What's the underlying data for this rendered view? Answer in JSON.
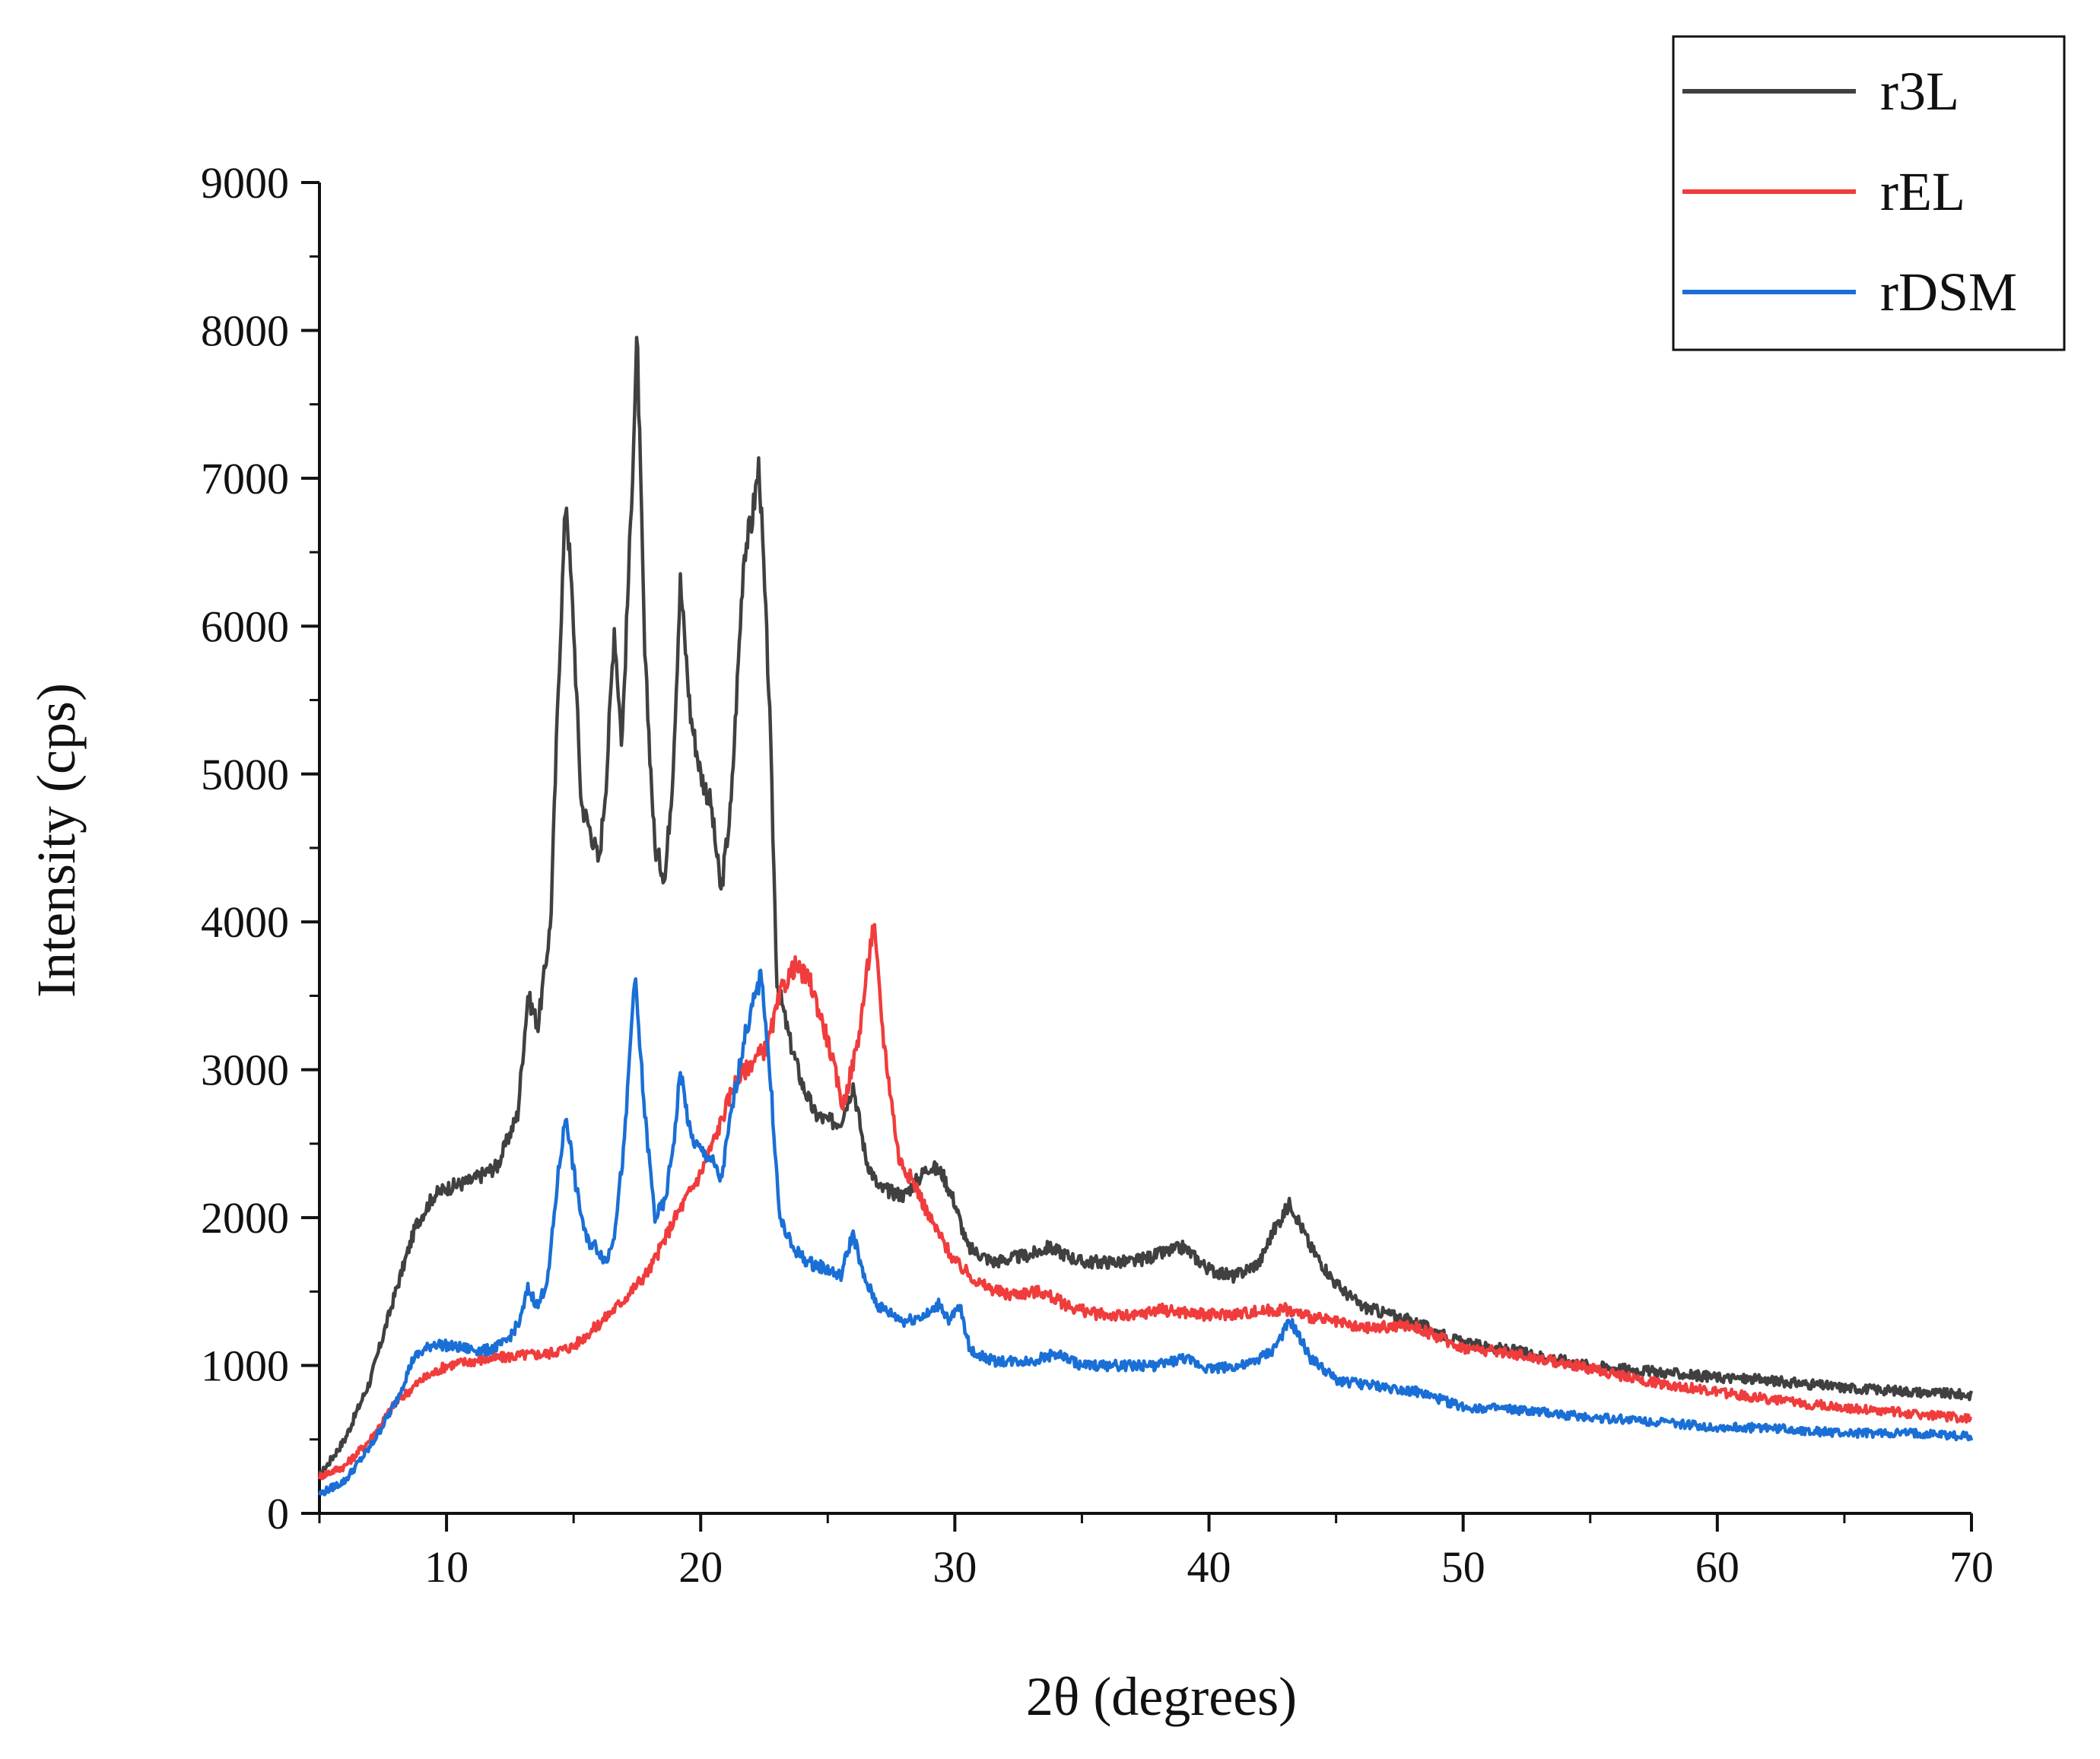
{
  "chart_data": {
    "type": "line",
    "title": "",
    "xlabel": "2θ (degrees)",
    "ylabel": "Intensity (cps)",
    "xlim": [
      5,
      70
    ],
    "ylim": [
      0,
      9000
    ],
    "x_ticks": [
      10,
      20,
      30,
      40,
      50,
      60,
      70
    ],
    "x_tick_labels": [
      "10",
      "20",
      "30",
      "40",
      "50",
      "60",
      "70"
    ],
    "y_ticks": [
      0,
      1000,
      2000,
      3000,
      4000,
      5000,
      6000,
      7000,
      8000,
      9000
    ],
    "y_tick_labels": [
      "0",
      "1000",
      "2000",
      "3000",
      "4000",
      "5000",
      "6000",
      "7000",
      "8000",
      "9000"
    ],
    "grid": false,
    "legend_position": "top-right",
    "series": [
      {
        "name": "r3L",
        "color": "#404040",
        "points": [
          [
            5,
            250
          ],
          [
            6,
            500
          ],
          [
            7,
            900
          ],
          [
            8,
            1500
          ],
          [
            8.8,
            1950
          ],
          [
            9.5,
            2150
          ],
          [
            10,
            2200
          ],
          [
            11,
            2250
          ],
          [
            12,
            2350
          ],
          [
            12.8,
            2700
          ],
          [
            13.2,
            3500
          ],
          [
            13.6,
            3300
          ],
          [
            14.1,
            4000
          ],
          [
            14.4,
            5600
          ],
          [
            14.7,
            6900
          ],
          [
            15.0,
            6000
          ],
          [
            15.3,
            4800
          ],
          [
            15.7,
            4600
          ],
          [
            16.0,
            4400
          ],
          [
            16.3,
            5000
          ],
          [
            16.6,
            6000
          ],
          [
            16.9,
            5200
          ],
          [
            17.2,
            6500
          ],
          [
            17.5,
            7950
          ],
          [
            17.8,
            5800
          ],
          [
            18.2,
            4500
          ],
          [
            18.6,
            4300
          ],
          [
            18.9,
            5000
          ],
          [
            19.2,
            6300
          ],
          [
            19.6,
            5400
          ],
          [
            20.0,
            5000
          ],
          [
            20.4,
            4800
          ],
          [
            20.8,
            4200
          ],
          [
            21.2,
            4800
          ],
          [
            21.7,
            6500
          ],
          [
            22.0,
            6700
          ],
          [
            22.3,
            7100
          ],
          [
            22.7,
            5500
          ],
          [
            23.0,
            3600
          ],
          [
            23.5,
            3200
          ],
          [
            24.0,
            2900
          ],
          [
            24.5,
            2700
          ],
          [
            25.0,
            2650
          ],
          [
            25.5,
            2650
          ],
          [
            26.0,
            2900
          ],
          [
            26.5,
            2400
          ],
          [
            27.0,
            2200
          ],
          [
            28.0,
            2150
          ],
          [
            29.0,
            2350
          ],
          [
            29.5,
            2300
          ],
          [
            30.0,
            2100
          ],
          [
            30.5,
            1800
          ],
          [
            31.5,
            1700
          ],
          [
            33.0,
            1750
          ],
          [
            33.7,
            1800
          ],
          [
            35.0,
            1700
          ],
          [
            37.0,
            1700
          ],
          [
            39.0,
            1800
          ],
          [
            40.0,
            1650
          ],
          [
            41.0,
            1600
          ],
          [
            42.0,
            1700
          ],
          [
            42.5,
            1900
          ],
          [
            43.2,
            2100
          ],
          [
            44.0,
            1800
          ],
          [
            45.0,
            1550
          ],
          [
            46.0,
            1400
          ],
          [
            48.0,
            1300
          ],
          [
            50.0,
            1150
          ],
          [
            52.0,
            1100
          ],
          [
            55.0,
            1000
          ],
          [
            58.0,
            950
          ],
          [
            60.0,
            920
          ],
          [
            62.0,
            900
          ],
          [
            65.0,
            850
          ],
          [
            68.0,
            820
          ],
          [
            70.0,
            800
          ]
        ]
      },
      {
        "name": "rEL",
        "color": "#f03c3c",
        "points": [
          [
            5,
            250
          ],
          [
            6,
            320
          ],
          [
            7,
            500
          ],
          [
            8,
            750
          ],
          [
            9,
            900
          ],
          [
            10,
            1000
          ],
          [
            11,
            1030
          ],
          [
            12,
            1050
          ],
          [
            13,
            1070
          ],
          [
            14,
            1080
          ],
          [
            15,
            1130
          ],
          [
            16,
            1280
          ],
          [
            17,
            1450
          ],
          [
            18,
            1650
          ],
          [
            19,
            2000
          ],
          [
            20,
            2300
          ],
          [
            20.7,
            2600
          ],
          [
            21.3,
            2900
          ],
          [
            22.0,
            3050
          ],
          [
            22.6,
            3150
          ],
          [
            23.2,
            3550
          ],
          [
            23.7,
            3700
          ],
          [
            24.3,
            3600
          ],
          [
            25.0,
            3200
          ],
          [
            25.6,
            2750
          ],
          [
            26.2,
            3200
          ],
          [
            26.8,
            4000
          ],
          [
            27.2,
            3200
          ],
          [
            27.8,
            2400
          ],
          [
            28.5,
            2200
          ],
          [
            29.0,
            2000
          ],
          [
            30.0,
            1700
          ],
          [
            31.0,
            1550
          ],
          [
            32.0,
            1480
          ],
          [
            33.4,
            1500
          ],
          [
            34.5,
            1400
          ],
          [
            35.5,
            1350
          ],
          [
            37.0,
            1330
          ],
          [
            38.0,
            1380
          ],
          [
            39.0,
            1360
          ],
          [
            40.0,
            1340
          ],
          [
            41.0,
            1350
          ],
          [
            43.0,
            1380
          ],
          [
            44.0,
            1330
          ],
          [
            46.0,
            1250
          ],
          [
            48.0,
            1270
          ],
          [
            50.0,
            1120
          ],
          [
            52.0,
            1080
          ],
          [
            55.0,
            980
          ],
          [
            57.0,
            900
          ],
          [
            60.0,
            820
          ],
          [
            63.0,
            750
          ],
          [
            66.0,
            700
          ],
          [
            70.0,
            640
          ]
        ]
      },
      {
        "name": "rDSM",
        "color": "#1a6fd6",
        "points": [
          [
            5,
            130
          ],
          [
            6,
            220
          ],
          [
            7,
            450
          ],
          [
            8,
            750
          ],
          [
            8.7,
            1050
          ],
          [
            9.5,
            1150
          ],
          [
            10.5,
            1120
          ],
          [
            11.5,
            1100
          ],
          [
            12.3,
            1150
          ],
          [
            12.9,
            1300
          ],
          [
            13.2,
            1520
          ],
          [
            13.6,
            1400
          ],
          [
            14.0,
            1600
          ],
          [
            14.4,
            2300
          ],
          [
            14.7,
            2700
          ],
          [
            15.1,
            2200
          ],
          [
            15.5,
            1850
          ],
          [
            15.9,
            1800
          ],
          [
            16.3,
            1700
          ],
          [
            16.6,
            1900
          ],
          [
            17.0,
            2500
          ],
          [
            17.4,
            3650
          ],
          [
            17.8,
            2700
          ],
          [
            18.2,
            2000
          ],
          [
            18.6,
            2100
          ],
          [
            19.0,
            2600
          ],
          [
            19.2,
            3000
          ],
          [
            19.6,
            2550
          ],
          [
            20.0,
            2450
          ],
          [
            20.4,
            2400
          ],
          [
            20.8,
            2250
          ],
          [
            21.2,
            2700
          ],
          [
            21.7,
            3200
          ],
          [
            22.0,
            3400
          ],
          [
            22.4,
            3650
          ],
          [
            22.8,
            2800
          ],
          [
            23.1,
            2000
          ],
          [
            23.6,
            1800
          ],
          [
            24.2,
            1700
          ],
          [
            25.0,
            1650
          ],
          [
            25.5,
            1600
          ],
          [
            26.0,
            1900
          ],
          [
            26.4,
            1600
          ],
          [
            27.0,
            1400
          ],
          [
            28.0,
            1300
          ],
          [
            29.0,
            1350
          ],
          [
            29.4,
            1420
          ],
          [
            29.8,
            1300
          ],
          [
            30.2,
            1400
          ],
          [
            30.6,
            1100
          ],
          [
            31.5,
            1030
          ],
          [
            33.0,
            1030
          ],
          [
            34.0,
            1080
          ],
          [
            35.0,
            1000
          ],
          [
            36.0,
            1000
          ],
          [
            38.0,
            1000
          ],
          [
            39.0,
            1050
          ],
          [
            40.0,
            980
          ],
          [
            41.5,
            1000
          ],
          [
            42.5,
            1100
          ],
          [
            43.2,
            1300
          ],
          [
            44.0,
            1050
          ],
          [
            45.0,
            900
          ],
          [
            47.0,
            850
          ],
          [
            48.0,
            830
          ],
          [
            50.0,
            720
          ],
          [
            52.0,
            700
          ],
          [
            55.0,
            650
          ],
          [
            57.0,
            630
          ],
          [
            60.0,
            580
          ],
          [
            62.0,
            580
          ],
          [
            65.0,
            540
          ],
          [
            68.0,
            540
          ],
          [
            70.0,
            520
          ]
        ]
      }
    ]
  }
}
